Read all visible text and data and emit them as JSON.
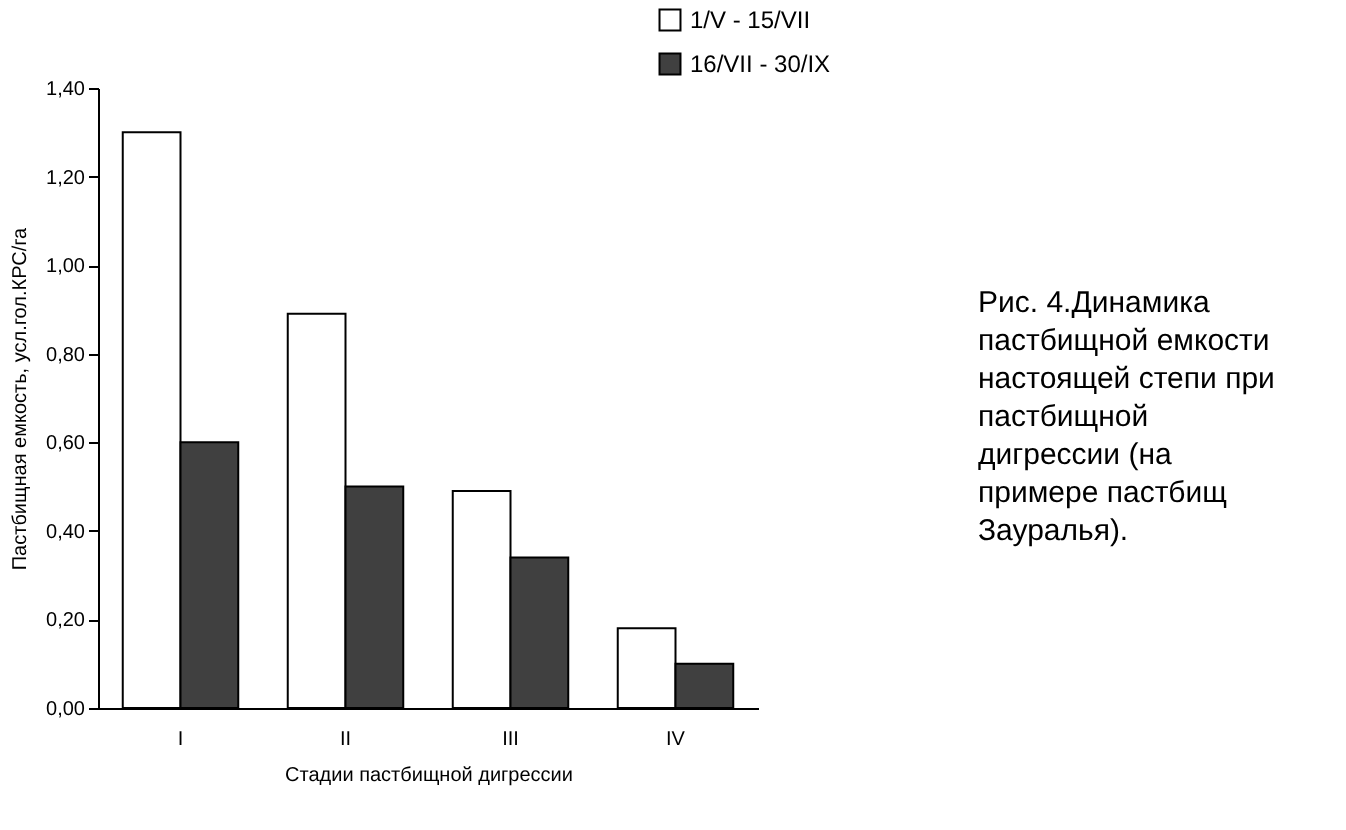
{
  "chart_data": {
    "type": "bar",
    "ylabel": "Пастбищная емкость, усл.гол.КРС/га",
    "xlabel": "Стадии пастбищной дигрессии",
    "categories": [
      "I",
      "II",
      "III",
      "IV"
    ],
    "series": [
      {
        "name": "1/V - 15/VII",
        "color": "#ffffff",
        "values": [
          1.3,
          0.89,
          0.49,
          0.18
        ]
      },
      {
        "name": "16/VII - 30/IX",
        "color": "#404040",
        "values": [
          0.6,
          0.5,
          0.34,
          0.1
        ]
      }
    ],
    "ylim": [
      0,
      1.4
    ],
    "yticks": [
      {
        "value": 0,
        "label": "0,00"
      },
      {
        "value": 0.2,
        "label": "0,20"
      },
      {
        "value": 0.4,
        "label": "0,40"
      },
      {
        "value": 0.6,
        "label": "0,60"
      },
      {
        "value": 0.8,
        "label": "0,80"
      },
      {
        "value": 1.0,
        "label": "1,00"
      },
      {
        "value": 1.2,
        "label": "1,20"
      },
      {
        "value": 1.4,
        "label": "1,40"
      }
    ],
    "legend": "top right",
    "grid": false,
    "annotations": [
      "Рис. 4.Динамика пастбищной емкости настоящей степи при пастбищной дигрессии (на примере пастбищ Зауралья)."
    ]
  }
}
